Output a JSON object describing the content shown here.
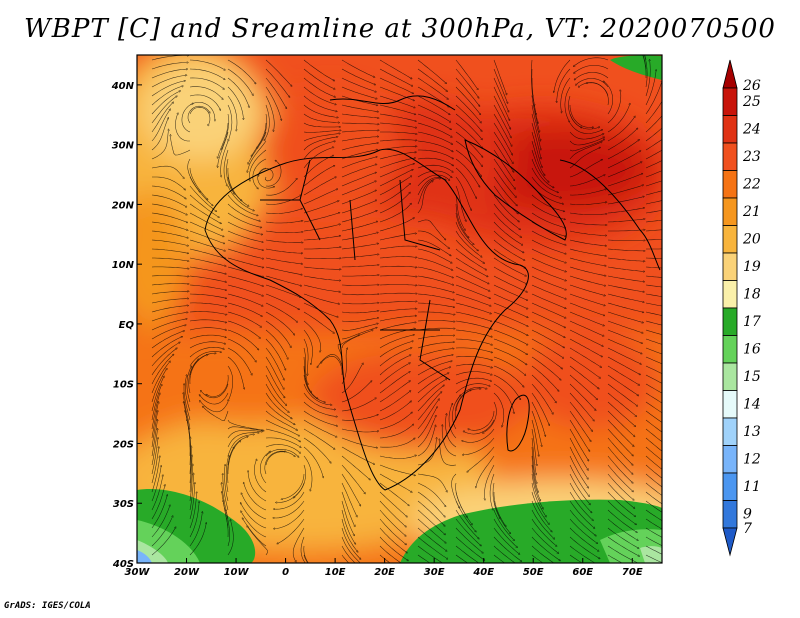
{
  "title": "WBPT [C] and Sreamline at 300hPa, VT: 2020070500",
  "credit": "GrADS: IGES/COLA",
  "map": {
    "lon_range": [
      -30,
      76
    ],
    "lat_range": [
      -40,
      45
    ],
    "lon_ticks": [
      {
        "value": -30,
        "label": "30W"
      },
      {
        "value": -20,
        "label": "20W"
      },
      {
        "value": -10,
        "label": "10W"
      },
      {
        "value": 0,
        "label": "0"
      },
      {
        "value": 10,
        "label": "10E"
      },
      {
        "value": 20,
        "label": "20E"
      },
      {
        "value": 30,
        "label": "30E"
      },
      {
        "value": 40,
        "label": "40E"
      },
      {
        "value": 50,
        "label": "50E"
      },
      {
        "value": 60,
        "label": "60E"
      },
      {
        "value": 70,
        "label": "70E"
      }
    ],
    "lat_ticks": [
      {
        "value": 40,
        "label": "40N"
      },
      {
        "value": 30,
        "label": "30N"
      },
      {
        "value": 20,
        "label": "20N"
      },
      {
        "value": 10,
        "label": "10N"
      },
      {
        "value": 0,
        "label": "EQ"
      },
      {
        "value": -10,
        "label": "10S"
      },
      {
        "value": -20,
        "label": "20S"
      },
      {
        "value": -30,
        "label": "30S"
      },
      {
        "value": -40,
        "label": "40S"
      }
    ]
  },
  "colorbar": {
    "levels": [
      {
        "label": "26",
        "color": "#a50000"
      },
      {
        "label": "25",
        "color": "#c8140a"
      },
      {
        "label": "24",
        "color": "#e03214"
      },
      {
        "label": "23",
        "color": "#f0501e"
      },
      {
        "label": "22",
        "color": "#f57314"
      },
      {
        "label": "21",
        "color": "#f5961e"
      },
      {
        "label": "20",
        "color": "#f8b43c"
      },
      {
        "label": "19",
        "color": "#fad278"
      },
      {
        "label": "18",
        "color": "#faf0aa"
      },
      {
        "label": "17",
        "color": "#28aa28"
      },
      {
        "label": "16",
        "color": "#64d25a"
      },
      {
        "label": "15",
        "color": "#aae6a0"
      },
      {
        "label": "14",
        "color": "#e6fafa"
      },
      {
        "label": "13",
        "color": "#a0d2fa"
      },
      {
        "label": "12",
        "color": "#78b4fa"
      },
      {
        "label": "11",
        "color": "#4b96f0"
      },
      {
        "label": "9",
        "color": "#3278dc"
      },
      {
        "label": "7",
        "color": "#1e5ac8"
      }
    ]
  }
}
